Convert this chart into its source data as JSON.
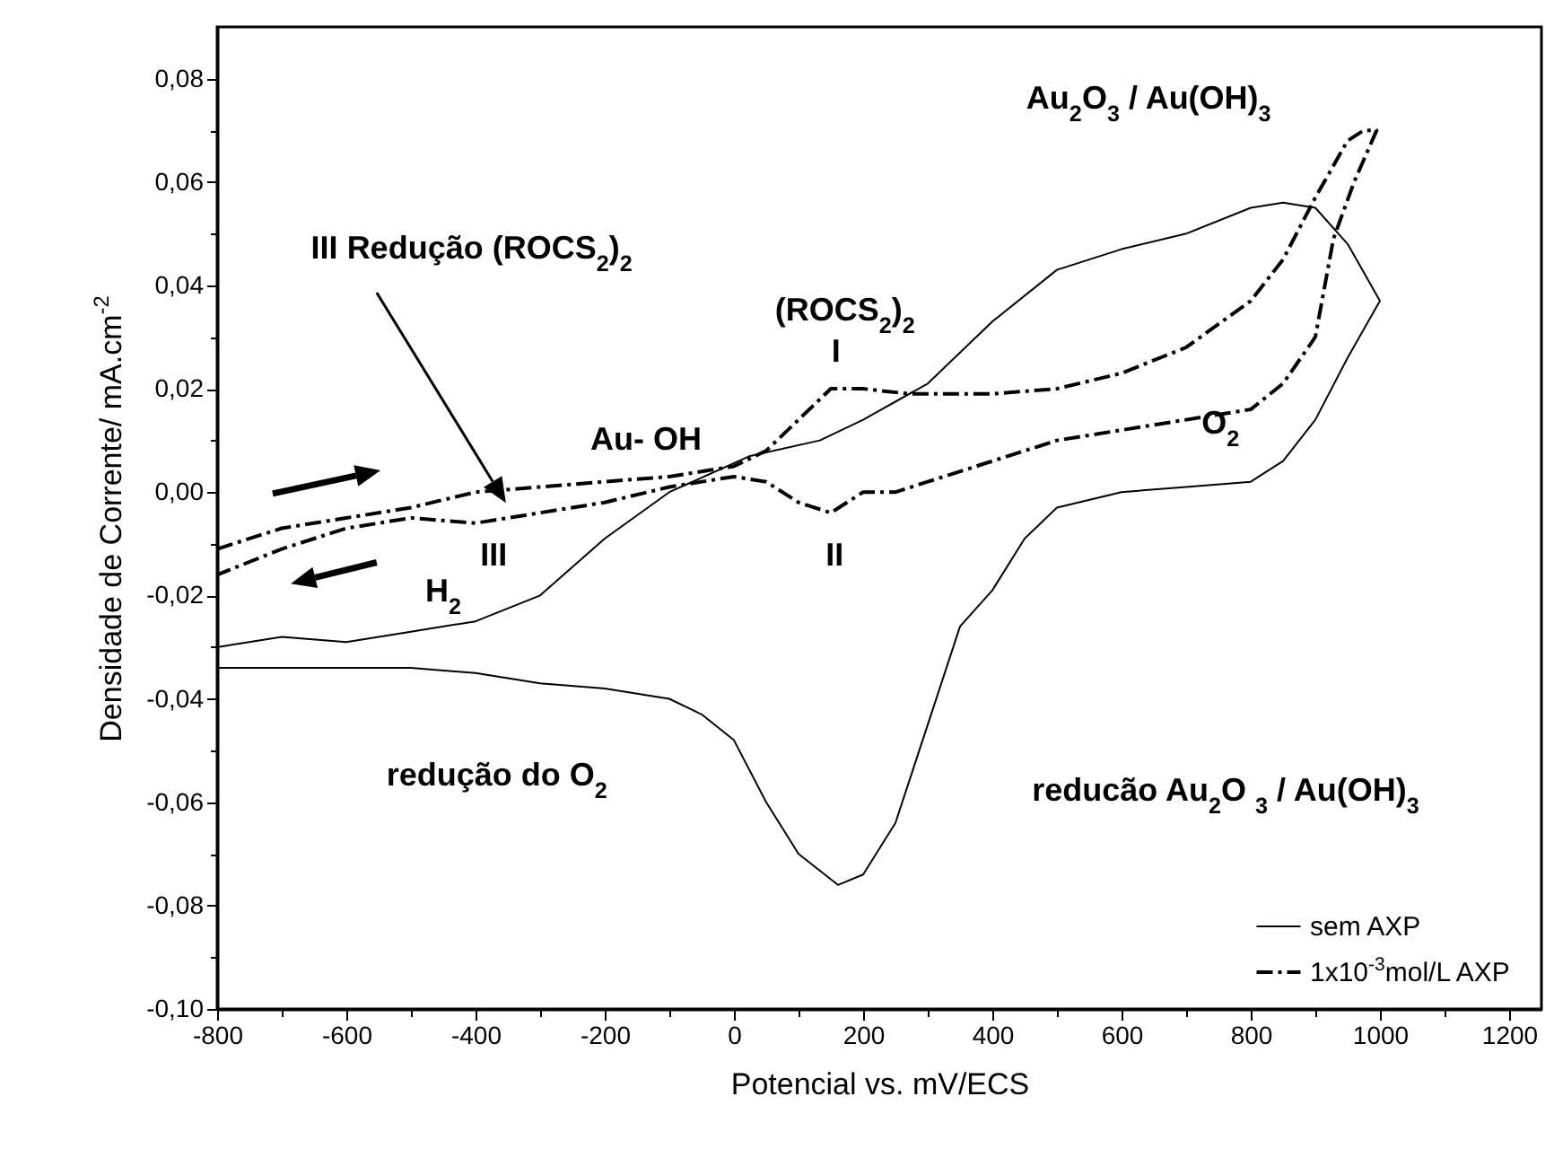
{
  "chart_data": {
    "type": "line",
    "xlabel": "Potencial vs. mV/ECS",
    "ylabel": "Densidade de Corrente/ mA.cm$^{-2}$",
    "xlim": [
      -800,
      1250
    ],
    "ylim": [
      -0.1,
      0.09
    ],
    "xticks": [
      -800,
      {
        "value": -700,
        "label": null
      },
      -600,
      {
        "value": -500,
        "label": null
      },
      -400,
      {
        "value": -300,
        "label": null
      },
      -200,
      {
        "value": -100,
        "label": null
      },
      0,
      {
        "value": 100,
        "label": null
      },
      200,
      {
        "value": 300,
        "label": null
      },
      400,
      {
        "value": 500,
        "label": null
      },
      600,
      {
        "value": 700,
        "label": null
      },
      800,
      {
        "value": 900,
        "label": null
      },
      1000,
      {
        "value": 1100,
        "label": null
      },
      1200
    ],
    "yticks": [
      {
        "value": -0.1,
        "label": "-0,10"
      },
      {
        "value": -0.09,
        "label": null
      },
      {
        "value": -0.08,
        "label": "-0,08"
      },
      {
        "value": -0.07,
        "label": null
      },
      {
        "value": -0.06,
        "label": "-0,06"
      },
      {
        "value": -0.05,
        "label": null
      },
      {
        "value": -0.04,
        "label": "-0,04"
      },
      {
        "value": -0.03,
        "label": null
      },
      {
        "value": -0.02,
        "label": "-0,02"
      },
      {
        "value": -0.01,
        "label": null
      },
      {
        "value": 0,
        "label": "0,00"
      },
      {
        "value": 0.01,
        "label": null
      },
      {
        "value": 0.02,
        "label": "0,02"
      },
      {
        "value": 0.03,
        "label": null
      },
      {
        "value": 0.04,
        "label": "0,04"
      },
      {
        "value": 0.05,
        "label": null
      },
      {
        "value": 0.06,
        "label": "0,06"
      },
      {
        "value": 0.07,
        "label": null
      },
      {
        "value": 0.08,
        "label": "0,08"
      }
    ],
    "legend": "bottom right",
    "grid": false,
    "marker": "none",
    "series": [
      {
        "name": "sem AXP",
        "color": "#000000",
        "line_style": "solid",
        "x": [
          -800,
          -700,
          -600,
          -500,
          -400,
          -300,
          -200,
          -100,
          25,
          133,
          200,
          300,
          400,
          500,
          600,
          700,
          800,
          850,
          900,
          950,
          1000,
          950,
          900,
          850,
          800,
          700,
          600,
          500,
          450,
          400,
          350,
          300,
          250,
          200,
          161,
          100,
          50,
          0,
          -50,
          -100,
          -200,
          -300,
          -400,
          -500,
          -600,
          -700,
          -800
        ],
        "values": [
          -0.03,
          -0.028,
          -0.029,
          -0.027,
          -0.025,
          -0.02,
          -0.009,
          0.0,
          0.007,
          0.01,
          0.014,
          0.021,
          0.033,
          0.043,
          0.047,
          0.05,
          0.055,
          0.056,
          0.055,
          0.048,
          0.037,
          0.026,
          0.014,
          0.006,
          0.002,
          0.001,
          0.0,
          -0.003,
          -0.009,
          -0.019,
          -0.026,
          -0.045,
          -0.064,
          -0.074,
          -0.076,
          -0.07,
          -0.06,
          -0.048,
          -0.043,
          -0.04,
          -0.038,
          -0.037,
          -0.035,
          -0.034,
          -0.034,
          -0.034,
          -0.034
        ]
      },
      {
        "name": "1x10$^{-3}$mol/L AXP",
        "color": "#000000",
        "line_style": "dashed",
        "x": [
          -800,
          -700,
          -600,
          -500,
          -400,
          -300,
          -200,
          -100,
          0,
          50,
          100,
          150,
          200,
          272,
          300,
          400,
          500,
          600,
          700,
          800,
          850,
          900,
          950,
          975,
          995,
          960,
          928,
          900,
          850,
          800,
          700,
          600,
          500,
          400,
          300,
          250,
          200,
          150,
          100,
          50,
          0,
          -100,
          -200,
          -300,
          -400,
          -500,
          -600,
          -700,
          -800
        ],
        "values": [
          -0.011,
          -0.007,
          -0.005,
          -0.003,
          0.0,
          0.001,
          0.002,
          0.003,
          0.005,
          0.008,
          0.014,
          0.02,
          0.02,
          0.019,
          0.019,
          0.019,
          0.02,
          0.023,
          0.028,
          0.037,
          0.045,
          0.057,
          0.068,
          0.07,
          0.07,
          0.06,
          0.049,
          0.03,
          0.021,
          0.016,
          0.014,
          0.012,
          0.01,
          0.006,
          0.002,
          0.0,
          0.0,
          -0.004,
          -0.002,
          0.002,
          0.003,
          0.001,
          -0.002,
          -0.004,
          -0.006,
          -0.005,
          -0.007,
          -0.011,
          -0.016
        ]
      }
    ],
    "annotations": [
      "Au$_{2}$O$_{3}$ / Au(OH)$_{3}$",
      "III Redução (ROCS$_{2}$)$_{2}$",
      "(ROCS$_{2}$)$_{2}$",
      "I",
      "Au- OH",
      "O$_{2}$",
      "II",
      "III",
      "H$_{2}$",
      "redução do O$_{2}$",
      "reducão  Au$_{2}$O $_{3}$ / Au(OH)$_{3}$"
    ]
  }
}
